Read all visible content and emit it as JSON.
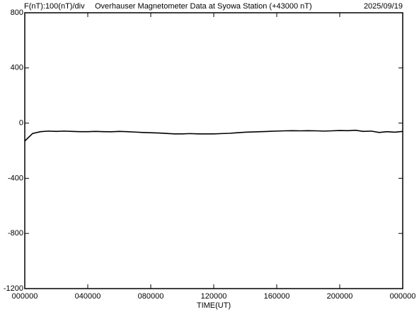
{
  "chart_data": {
    "type": "line",
    "title": "Overhauser Magnetometer Data at Syowa Station (+43000 nT)",
    "scale_label": "F(nT):100(nT)/div",
    "date": "2025/09/19",
    "x_label": "TIME(UT)",
    "xlim": [
      0,
      24
    ],
    "xticks": [
      {
        "value": 0,
        "label": "000000"
      },
      {
        "value": 4,
        "label": "040000"
      },
      {
        "value": 8,
        "label": "080000"
      },
      {
        "value": 12,
        "label": "120000"
      },
      {
        "value": 16,
        "label": "160000"
      },
      {
        "value": 20,
        "label": "200000"
      },
      {
        "value": 24,
        "label": "000000"
      }
    ],
    "ylim": [
      -1200,
      800
    ],
    "yticks": [
      -1200,
      -800,
      -400,
      0,
      400,
      800
    ],
    "x": [
      0,
      0.5,
      1,
      1.5,
      2,
      2.5,
      3,
      3.5,
      4,
      4.5,
      5,
      5.5,
      6,
      6.5,
      7,
      7.5,
      8,
      8.5,
      9,
      9.5,
      10,
      10.5,
      11,
      11.5,
      12,
      12.5,
      13,
      13.5,
      14,
      14.5,
      15,
      15.5,
      16,
      16.5,
      17,
      17.5,
      18,
      18.5,
      19,
      19.5,
      20,
      20.5,
      21,
      21.5,
      22,
      22.5,
      23,
      23.5,
      24
    ],
    "series": [
      {
        "color": "#000000",
        "values": [
          -130,
          -75,
          -62,
          -58,
          -60,
          -58,
          -60,
          -62,
          -62,
          -60,
          -62,
          -63,
          -60,
          -62,
          -65,
          -68,
          -70,
          -72,
          -75,
          -78,
          -78,
          -76,
          -78,
          -78,
          -78,
          -76,
          -74,
          -70,
          -66,
          -64,
          -62,
          -60,
          -58,
          -56,
          -55,
          -56,
          -55,
          -56,
          -58,
          -56,
          -54,
          -55,
          -52,
          -60,
          -58,
          -68,
          -62,
          -66,
          -60
        ]
      }
    ]
  }
}
